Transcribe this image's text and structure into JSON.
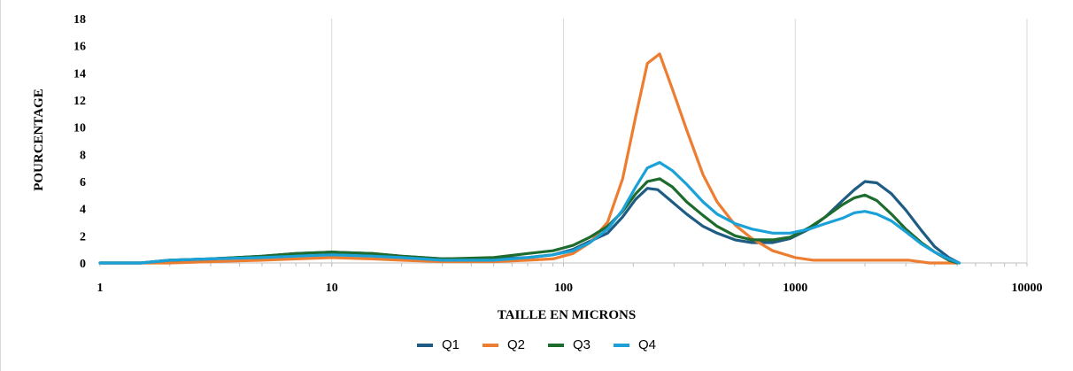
{
  "chart_data": {
    "type": "line",
    "title": "",
    "xlabel": "TAILLE EN MICRONS",
    "ylabel": "POURCENTAGE",
    "xscale": "log",
    "xlim": [
      1,
      10000
    ],
    "ylim": [
      0,
      18
    ],
    "yticks": [
      "0",
      "2",
      "4",
      "6",
      "8",
      "10",
      "12",
      "14",
      "16",
      "18"
    ],
    "xticks": [
      "1",
      "10",
      "100",
      "1000",
      "10000"
    ],
    "grid": "vertical major gridlines",
    "legend": "bottom",
    "series": [
      {
        "name": "Q1",
        "color": "#1f5c84",
        "points": [
          [
            1,
            0
          ],
          [
            1.5,
            0
          ],
          [
            2,
            0.2
          ],
          [
            3,
            0.3
          ],
          [
            5,
            0.5
          ],
          [
            7,
            0.7
          ],
          [
            10,
            0.8
          ],
          [
            15,
            0.7
          ],
          [
            20,
            0.5
          ],
          [
            30,
            0.3
          ],
          [
            50,
            0.3
          ],
          [
            70,
            0.4
          ],
          [
            90,
            0.6
          ],
          [
            110,
            1.0
          ],
          [
            130,
            1.6
          ],
          [
            155,
            2.2
          ],
          [
            180,
            3.4
          ],
          [
            205,
            4.7
          ],
          [
            230,
            5.5
          ],
          [
            255,
            5.4
          ],
          [
            290,
            4.6
          ],
          [
            340,
            3.6
          ],
          [
            400,
            2.7
          ],
          [
            460,
            2.2
          ],
          [
            550,
            1.7
          ],
          [
            650,
            1.5
          ],
          [
            800,
            1.5
          ],
          [
            950,
            1.8
          ],
          [
            1150,
            2.5
          ],
          [
            1350,
            3.4
          ],
          [
            1600,
            4.6
          ],
          [
            1800,
            5.4
          ],
          [
            2000,
            6.0
          ],
          [
            2250,
            5.9
          ],
          [
            2600,
            5.1
          ],
          [
            3000,
            3.9
          ],
          [
            3500,
            2.4
          ],
          [
            4000,
            1.2
          ],
          [
            4600,
            0.4
          ],
          [
            5100,
            0
          ]
        ]
      },
      {
        "name": "Q2",
        "color": "#ed7d31",
        "points": [
          [
            1,
            0
          ],
          [
            2,
            0
          ],
          [
            3,
            0.1
          ],
          [
            5,
            0.2
          ],
          [
            7,
            0.3
          ],
          [
            10,
            0.4
          ],
          [
            15,
            0.3
          ],
          [
            20,
            0.2
          ],
          [
            30,
            0.1
          ],
          [
            50,
            0.1
          ],
          [
            70,
            0.2
          ],
          [
            90,
            0.3
          ],
          [
            110,
            0.7
          ],
          [
            130,
            1.5
          ],
          [
            155,
            3.0
          ],
          [
            180,
            6.2
          ],
          [
            205,
            10.8
          ],
          [
            230,
            14.7
          ],
          [
            260,
            15.4
          ],
          [
            295,
            12.8
          ],
          [
            340,
            9.8
          ],
          [
            400,
            6.5
          ],
          [
            460,
            4.5
          ],
          [
            550,
            2.8
          ],
          [
            650,
            1.8
          ],
          [
            800,
            0.9
          ],
          [
            1000,
            0.4
          ],
          [
            1200,
            0.2
          ],
          [
            1500,
            0.2
          ],
          [
            2000,
            0.2
          ],
          [
            2500,
            0.2
          ],
          [
            3100,
            0.2
          ],
          [
            3800,
            0
          ],
          [
            5000,
            0
          ]
        ]
      },
      {
        "name": "Q3",
        "color": "#1e6b2e",
        "points": [
          [
            1,
            0
          ],
          [
            1.5,
            0
          ],
          [
            2,
            0.2
          ],
          [
            3,
            0.3
          ],
          [
            5,
            0.5
          ],
          [
            7,
            0.7
          ],
          [
            10,
            0.8
          ],
          [
            15,
            0.7
          ],
          [
            20,
            0.5
          ],
          [
            30,
            0.3
          ],
          [
            50,
            0.4
          ],
          [
            70,
            0.7
          ],
          [
            90,
            0.9
          ],
          [
            110,
            1.3
          ],
          [
            130,
            1.9
          ],
          [
            155,
            2.7
          ],
          [
            180,
            3.8
          ],
          [
            205,
            5.1
          ],
          [
            230,
            6.0
          ],
          [
            260,
            6.2
          ],
          [
            295,
            5.6
          ],
          [
            340,
            4.5
          ],
          [
            400,
            3.5
          ],
          [
            460,
            2.7
          ],
          [
            550,
            2.0
          ],
          [
            650,
            1.7
          ],
          [
            800,
            1.7
          ],
          [
            950,
            1.9
          ],
          [
            1150,
            2.6
          ],
          [
            1350,
            3.4
          ],
          [
            1600,
            4.3
          ],
          [
            1800,
            4.8
          ],
          [
            2000,
            5.0
          ],
          [
            2250,
            4.6
          ],
          [
            2600,
            3.6
          ],
          [
            3000,
            2.5
          ],
          [
            3500,
            1.5
          ],
          [
            4000,
            0.8
          ],
          [
            4600,
            0.2
          ],
          [
            5000,
            0
          ]
        ]
      },
      {
        "name": "Q4",
        "color": "#1ba1d8",
        "points": [
          [
            1,
            0
          ],
          [
            1.5,
            0
          ],
          [
            2,
            0.2
          ],
          [
            3,
            0.3
          ],
          [
            5,
            0.4
          ],
          [
            7,
            0.5
          ],
          [
            10,
            0.6
          ],
          [
            15,
            0.5
          ],
          [
            20,
            0.4
          ],
          [
            30,
            0.2
          ],
          [
            50,
            0.2
          ],
          [
            70,
            0.4
          ],
          [
            90,
            0.6
          ],
          [
            110,
            0.9
          ],
          [
            130,
            1.5
          ],
          [
            155,
            2.5
          ],
          [
            180,
            3.9
          ],
          [
            205,
            5.6
          ],
          [
            230,
            7.0
          ],
          [
            260,
            7.4
          ],
          [
            295,
            6.8
          ],
          [
            340,
            5.8
          ],
          [
            400,
            4.5
          ],
          [
            460,
            3.6
          ],
          [
            550,
            2.9
          ],
          [
            650,
            2.5
          ],
          [
            800,
            2.2
          ],
          [
            950,
            2.2
          ],
          [
            1150,
            2.5
          ],
          [
            1350,
            2.9
          ],
          [
            1600,
            3.3
          ],
          [
            1800,
            3.7
          ],
          [
            2000,
            3.8
          ],
          [
            2250,
            3.6
          ],
          [
            2600,
            3.1
          ],
          [
            3000,
            2.3
          ],
          [
            3500,
            1.4
          ],
          [
            4000,
            0.8
          ],
          [
            4600,
            0.3
          ],
          [
            5100,
            0
          ]
        ]
      }
    ]
  }
}
